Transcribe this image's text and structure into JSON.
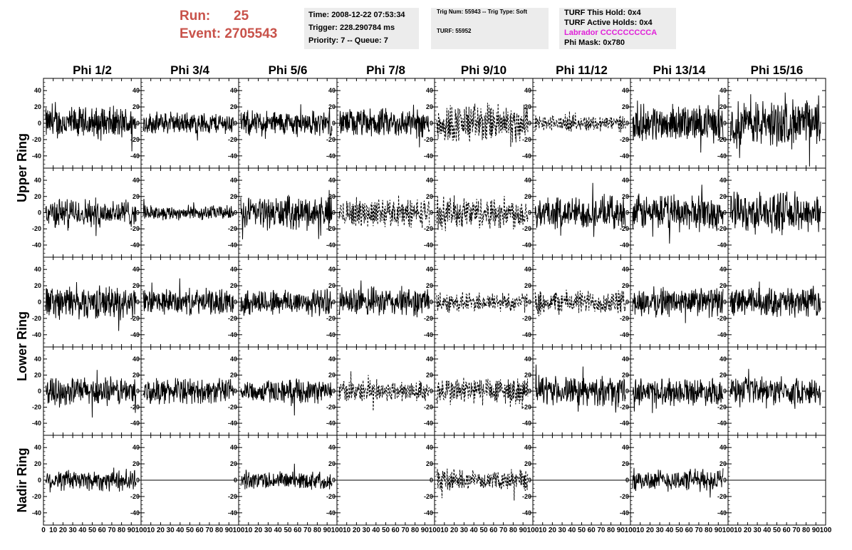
{
  "header": {
    "run_label": "Run:",
    "run_value": "25",
    "event_label": "Event:",
    "event_value": "2705543",
    "time": "Time: 2008-12-22 07:53:34",
    "trigger": "Trigger: 228.290784 ms",
    "priority": "Priority: 7 -- Queue: 7",
    "trig_num": "Trig Num: 55943 -- Trig Type: Soft",
    "turf": "TURF: 55952",
    "turf_hold": "TURF This Hold: 0x4",
    "turf_active": "TURF Active Holds: 0x4",
    "labrador": "Labrador CCCCCCCCCA",
    "phi_mask": "Phi Mask: 0x780"
  },
  "colors": {
    "run_text": "#c8524a",
    "labrador_text": "#e020d8",
    "info_box_bg": "#ececec",
    "trace": "#000000"
  },
  "chart_data": {
    "type": "line",
    "columns": [
      "Phi 1/2",
      "Phi 3/4",
      "Phi 5/6",
      "Phi 7/8",
      "Phi 9/10",
      "Phi 11/12",
      "Phi 13/14",
      "Phi 15/16"
    ],
    "rows": [
      "Upper Ring",
      "Upper Ring",
      "Lower Ring",
      "Lower Ring",
      "Nadir Ring"
    ],
    "row_labels": [
      "Upper Ring",
      "Lower Ring",
      "Nadir Ring"
    ],
    "xlim": [
      0,
      100
    ],
    "ylim": [
      -55,
      55
    ],
    "x_ticks": [
      "0",
      "10",
      "20",
      "30",
      "40",
      "50",
      "60",
      "70",
      "80",
      "90",
      "100"
    ],
    "y_ticks": [
      "-40",
      "-20",
      "0",
      "20",
      "40"
    ],
    "trace_style_note_values": [
      "solid",
      "dashed",
      "flat"
    ],
    "panels": [
      [
        {
          "style": "solid",
          "amp": 18
        },
        {
          "style": "solid",
          "amp": 12
        },
        {
          "style": "solid",
          "amp": 14
        },
        {
          "style": "solid",
          "amp": 16
        },
        {
          "style": "dashed",
          "amp": 22
        },
        {
          "style": "dashed",
          "amp": 9
        },
        {
          "style": "solid",
          "amp": 20
        },
        {
          "style": "solid",
          "amp": 26
        }
      ],
      [
        {
          "style": "solid",
          "amp": 16
        },
        {
          "style": "solid",
          "amp": 8
        },
        {
          "style": "solid",
          "amp": 18
        },
        {
          "style": "dashed",
          "amp": 16
        },
        {
          "style": "dashed",
          "amp": 18
        },
        {
          "style": "solid",
          "amp": 18
        },
        {
          "style": "solid",
          "amp": 20
        },
        {
          "style": "solid",
          "amp": 22
        }
      ],
      [
        {
          "style": "solid",
          "amp": 18
        },
        {
          "style": "solid",
          "amp": 14
        },
        {
          "style": "solid",
          "amp": 15
        },
        {
          "style": "solid",
          "amp": 16
        },
        {
          "style": "dashed",
          "amp": 11
        },
        {
          "style": "dashed",
          "amp": 13
        },
        {
          "style": "solid",
          "amp": 16
        },
        {
          "style": "solid",
          "amp": 16
        }
      ],
      [
        {
          "style": "solid",
          "amp": 16
        },
        {
          "style": "solid",
          "amp": 14
        },
        {
          "style": "solid",
          "amp": 13
        },
        {
          "style": "dashed",
          "amp": 12
        },
        {
          "style": "dashed",
          "amp": 16
        },
        {
          "style": "solid",
          "amp": 16
        },
        {
          "style": "solid",
          "amp": 15
        },
        {
          "style": "solid",
          "amp": 15
        }
      ],
      [
        {
          "style": "solid",
          "amp": 12
        },
        {
          "style": "flat",
          "amp": 0
        },
        {
          "style": "solid",
          "amp": 10
        },
        {
          "style": "flat",
          "amp": 0
        },
        {
          "style": "dashed",
          "amp": 11
        },
        {
          "style": "flat",
          "amp": 0
        },
        {
          "style": "solid",
          "amp": 12
        },
        {
          "style": "flat",
          "amp": 0
        }
      ]
    ]
  }
}
